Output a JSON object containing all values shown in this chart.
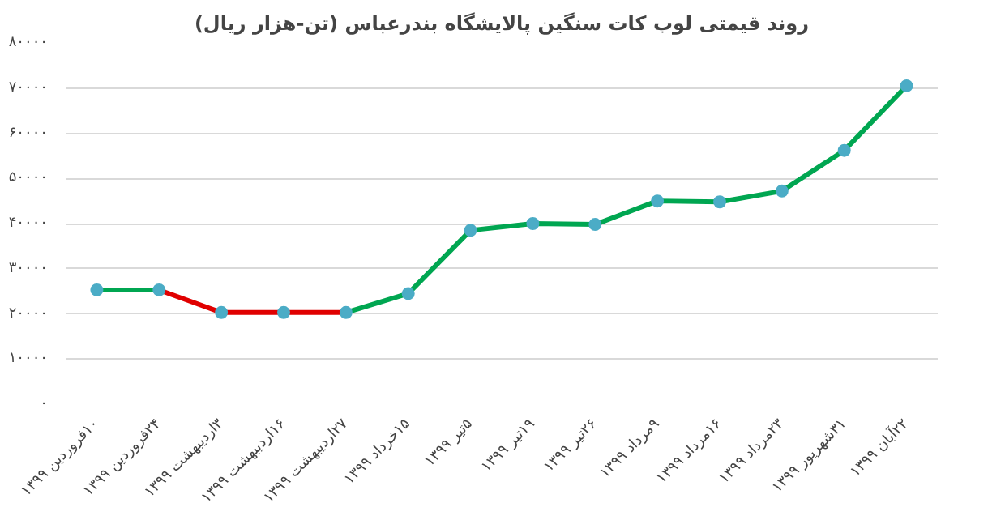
{
  "chart_data": {
    "type": "line",
    "title": "روند قیمتی لوب کات سنگین پالایشگاه بندرعباس (تن-هزار ریال)",
    "categories": [
      "۱۰فروردین ۱۳۹۹",
      "۲۴فروردین ۱۳۹۹",
      "۳اردیبهشت ۱۳۹۹",
      "۱۶اردیبهشت ۱۳۹۹",
      "۲۷اردیبهشت ۱۳۹۹",
      "۱۵خرداد ۱۳۹۹",
      "۵تیر ۱۳۹۹",
      "۱۹تیر ۱۳۹۹",
      "۲۶تیر ۱۳۹۹",
      "۹مرداد ۱۳۹۹",
      "۱۶مرداد ۱۳۹۹",
      "۲۳مرداد ۱۳۹۹",
      "۳۱شهریور ۱۳۹۹",
      "۲۲آبان ۱۳۹۹"
    ],
    "series": [
      {
        "color": "#00a651",
        "values": [
          25300,
          25300,
          null,
          null,
          20300,
          24500,
          38500,
          40000,
          39800,
          45000,
          44800,
          47200,
          56200,
          70500
        ]
      },
      {
        "type": "line",
        "color": "#e00000",
        "values": [
          null,
          25300,
          20300,
          20300,
          20300,
          null,
          null,
          null,
          null,
          null,
          null,
          null,
          null,
          null
        ]
      },
      {
        "type": "scatter",
        "color": "#4bacc6",
        "values": [
          25300,
          25300,
          20300,
          20300,
          20300,
          24500,
          38500,
          40000,
          39800,
          45000,
          44800,
          47200,
          56200,
          70500
        ]
      }
    ],
    "ylim": [
      0,
      80000
    ],
    "yticks": [
      {
        "value": 0,
        "label": "۰"
      },
      {
        "value": 10000,
        "label": "۱۰۰۰۰"
      },
      {
        "value": 20000,
        "label": "۲۰۰۰۰"
      },
      {
        "value": 30000,
        "label": "۳۰۰۰۰"
      },
      {
        "value": 40000,
        "label": "۴۰۰۰۰"
      },
      {
        "value": 50000,
        "label": "۵۰۰۰۰"
      },
      {
        "value": 60000,
        "label": "۶۰۰۰۰"
      },
      {
        "value": 70000,
        "label": "۷۰۰۰۰"
      },
      {
        "value": 80000,
        "label": "۸۰۰۰۰"
      }
    ],
    "grid": "y",
    "line_style": "solid"
  }
}
